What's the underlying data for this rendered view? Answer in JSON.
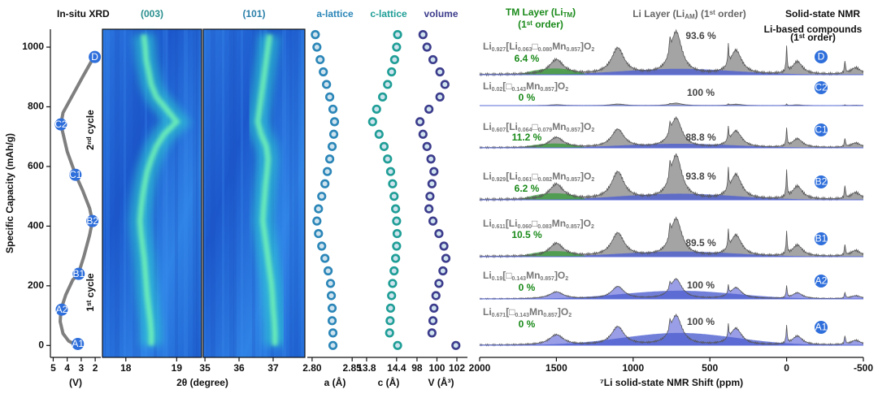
{
  "chart_data": [
    {
      "type": "line",
      "title": "In-situ XRD",
      "xlabel": "(V)",
      "ylabel": "Specific Capacity (mAh/g)",
      "xlim": [
        5.2,
        1.6
      ],
      "xticks": [
        5,
        4,
        3,
        2
      ],
      "ylim": [
        -40,
        1060
      ],
      "yticks": [
        0,
        200,
        400,
        600,
        800,
        1000
      ],
      "color": "#7f7f7f",
      "x": [
        3.3,
        3.9,
        4.3,
        4.5,
        4.45,
        4.1,
        3.6,
        3.2,
        2.8,
        2.4,
        2.2,
        2.4,
        2.9,
        3.4,
        4.0,
        4.45,
        4.3,
        3.6,
        2.9,
        2.3,
        2.03
      ],
      "y": [
        0,
        15,
        40,
        80,
        120,
        170,
        220,
        240,
        300,
        370,
        417,
        460,
        520,
        572,
        650,
        741,
        780,
        840,
        900,
        950,
        967
      ],
      "points": {
        "labels": [
          "A1",
          "A2",
          "B1",
          "B2",
          "C1",
          "C2",
          "D"
        ],
        "x": [
          3.24,
          4.39,
          3.18,
          2.2,
          3.41,
          4.45,
          2.03
        ],
        "y": [
          5,
          120,
          240,
          417,
          572,
          741,
          967
        ],
        "color": "#2f6fdb"
      },
      "annotations": [
        "1ˢᵗ cycle",
        "2ⁿᵈ cycle"
      ]
    },
    {
      "type": "heatmap",
      "title": "(003)",
      "color": "#2a8f8f",
      "xlabel": "2θ (degree)",
      "xlim": [
        17.54,
        19.49
      ],
      "xticks": [
        18,
        19
      ],
      "ylim": [
        -40,
        1060
      ],
      "y": [
        0,
        42,
        83,
        125,
        167,
        208,
        250,
        292,
        333,
        375,
        417,
        458,
        500,
        542,
        583,
        625,
        667,
        708,
        750,
        792,
        833,
        875,
        917,
        958,
        1000,
        1042
      ],
      "x": [
        18.5,
        18.5,
        18.48,
        18.45,
        18.42,
        18.4,
        18.38,
        18.36,
        18.33,
        18.3,
        18.28,
        18.3,
        18.33,
        18.37,
        18.42,
        18.5,
        18.6,
        18.75,
        19.0,
        18.8,
        18.6,
        18.5,
        18.45,
        18.4,
        18.38,
        18.35
      ]
    },
    {
      "type": "heatmap",
      "title": "(101)",
      "color": "#2a7fa8",
      "xlim": [
        34.95,
        37.93
      ],
      "xticks": [
        35,
        36,
        37
      ],
      "ylim": [
        -40,
        1060
      ],
      "y": [
        0,
        42,
        83,
        125,
        167,
        208,
        250,
        292,
        333,
        375,
        417,
        458,
        500,
        542,
        583,
        625,
        667,
        708,
        750,
        792,
        833,
        875,
        917,
        958,
        1000,
        1042
      ],
      "x": [
        37.05,
        37.05,
        37.03,
        37.0,
        36.98,
        36.95,
        36.9,
        36.85,
        36.8,
        36.75,
        36.7,
        36.72,
        36.75,
        36.78,
        36.82,
        36.85,
        36.8,
        36.65,
        36.55,
        36.6,
        36.65,
        36.7,
        36.75,
        36.8,
        36.85,
        36.9
      ]
    },
    {
      "type": "scatter",
      "title": "a-lattice",
      "color": "#2b86b8",
      "xlabel": "a (Å)",
      "xlim": [
        2.794,
        2.863
      ],
      "xticks": [
        {
          "value": 2.8,
          "label": "2.80"
        },
        2.85
      ],
      "ylim": [
        -40,
        1060
      ],
      "y": [
        0,
        42,
        83,
        125,
        167,
        208,
        250,
        292,
        333,
        375,
        417,
        458,
        500,
        542,
        583,
        625,
        667,
        708,
        750,
        792,
        833,
        875,
        917,
        958,
        1000,
        1042
      ],
      "x": [
        2.826,
        2.826,
        2.825,
        2.825,
        2.824,
        2.823,
        2.82,
        2.816,
        2.812,
        2.808,
        2.806,
        2.808,
        2.812,
        2.816,
        2.819,
        2.822,
        2.825,
        2.827,
        2.828,
        2.826,
        2.822,
        2.818,
        2.814,
        2.81,
        2.806,
        2.804
      ]
    },
    {
      "type": "scatter",
      "title": "c-lattice",
      "color": "#1f9e96",
      "xlabel": "c (Å)",
      "xlim": [
        13.72,
        14.76
      ],
      "xticks": [
        13.8,
        14.4
      ],
      "ylim": [
        -40,
        1060
      ],
      "y": [
        0,
        42,
        83,
        125,
        167,
        208,
        250,
        292,
        333,
        375,
        417,
        458,
        500,
        542,
        583,
        625,
        667,
        708,
        750,
        792,
        833,
        875,
        917,
        958,
        1000,
        1042
      ],
      "x": [
        14.42,
        14.26,
        14.27,
        14.28,
        14.3,
        14.32,
        14.35,
        14.38,
        14.4,
        14.41,
        14.4,
        14.38,
        14.35,
        14.32,
        14.28,
        14.22,
        14.15,
        14.05,
        13.92,
        14.0,
        14.12,
        14.22,
        14.3,
        14.36,
        14.4,
        14.42
      ]
    },
    {
      "type": "scatter",
      "title": "volume",
      "color": "#3c3c8c",
      "xlabel": "V (Å³)",
      "xlim": [
        97.76,
        103.06
      ],
      "xticks": [
        98,
        100,
        102
      ],
      "ylim": [
        -40,
        1060
      ],
      "y": [
        0,
        42,
        83,
        125,
        167,
        208,
        250,
        292,
        333,
        375,
        417,
        458,
        500,
        542,
        583,
        625,
        667,
        708,
        750,
        792,
        833,
        875,
        917,
        958,
        1000,
        1042
      ],
      "x": [
        101.9,
        99.5,
        99.6,
        99.7,
        99.9,
        100.2,
        100.6,
        100.9,
        100.7,
        100.2,
        99.6,
        99.2,
        99.3,
        99.5,
        99.7,
        99.4,
        99.0,
        98.6,
        98.3,
        99.2,
        100.3,
        100.8,
        100.3,
        99.6,
        99.0,
        98.6
      ]
    },
    {
      "type": "spectra",
      "title": "Solid-state NMR",
      "xlabel": "⁷Li solid-state NMR Shift (ppm)",
      "xlim": [
        2000,
        -500
      ],
      "xticks": [
        2000,
        1500,
        1000,
        500,
        0,
        -500
      ],
      "headers": {
        "tm": "TM Layer (LiTM)",
        "tm_order": "(1ˢᵗ order)",
        "li": "Li Layer (LiAM) (1ˢᵗ order)",
        "compounds": "Li-based compounds",
        "compounds_order": "(1ˢᵗ order)"
      },
      "spectra": [
        {
          "label": "D",
          "formula": "Li0.927[Li0.063□0.080Mn0.857]O2",
          "tm": "6.4 %",
          "li": "93.6 %"
        },
        {
          "label": "C2",
          "formula": "Li0.02[□0.143Mn0.857]O2",
          "tm": "0 %",
          "li": "100 %"
        },
        {
          "label": "C1",
          "formula": "Li0.607[Li0.064□0.079Mn0.857]O2",
          "tm": "11.2 %",
          "li": "88.8 %"
        },
        {
          "label": "B2",
          "formula": "Li0.929[Li0.061□0.082Mn0.857]O2",
          "tm": "6.2 %",
          "li": "93.8 %"
        },
        {
          "label": "B1",
          "formula": "Li0.611[Li0.060□0.083Mn0.857]O2",
          "tm": "10.5 %",
          "li": "89.5 %"
        },
        {
          "label": "A2",
          "formula": "Li0.19[□0.143Mn0.857]O2",
          "tm": "0 %",
          "li": "100 %"
        },
        {
          "label": "A1",
          "formula": "Li0.671[□0.143Mn0.857]O2",
          "tm": "0 %",
          "li": "100 %"
        }
      ]
    }
  ]
}
